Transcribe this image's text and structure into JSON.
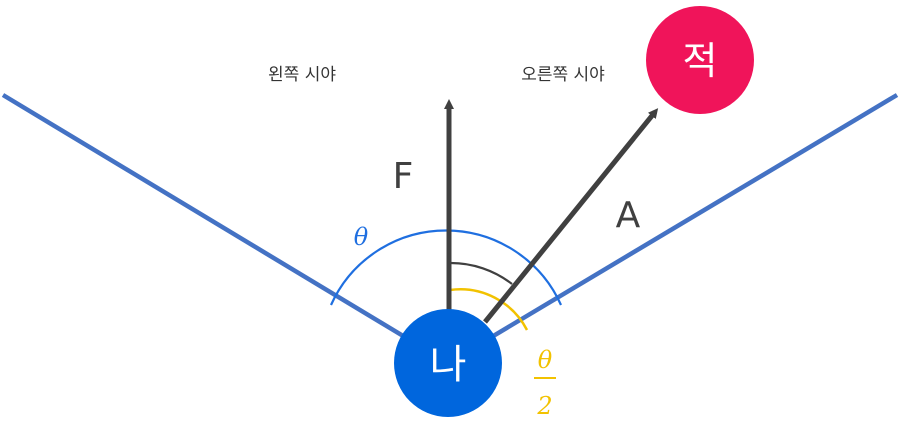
{
  "labels": {
    "left_view": "왼쪽 시야",
    "right_view": "오른쪽 시야",
    "forward_vector": "F",
    "target_vector": "A",
    "fov_symbol": "θ",
    "half_numerator": "θ",
    "half_denominator": "2"
  },
  "nodes": {
    "player": "나",
    "enemy": "적"
  },
  "colors": {
    "view_lines": "#4472c4",
    "player_fill": "#0066dd",
    "enemy_fill": "#f0145a",
    "vectors": "#404040",
    "fov_arc": "#1f6fe0",
    "half_arc": "#f2c200",
    "angle_arc": "#404040",
    "text": "#333333"
  },
  "icons": {
    "forward_arrow": "arrow-up",
    "target_arrow": "arrow-up-right"
  }
}
